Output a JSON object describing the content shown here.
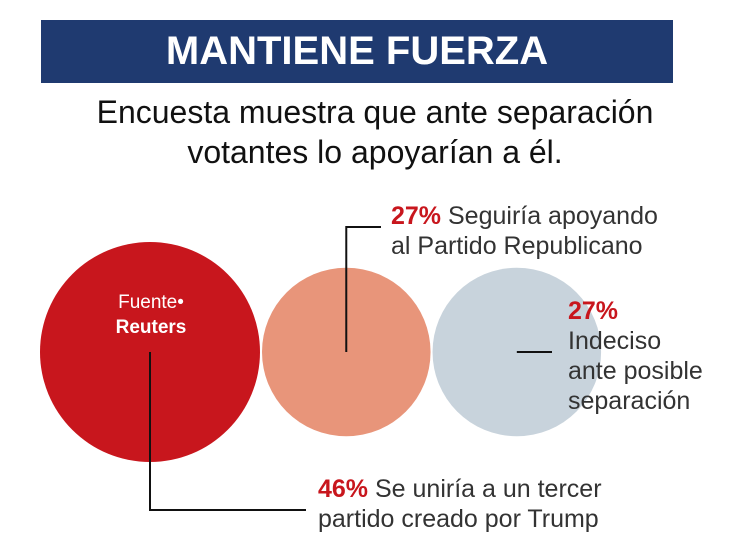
{
  "header": {
    "title": "MANTIENE FUERZA",
    "subtitle_line1": "Encuesta muestra que ante separación",
    "subtitle_line2": "votantes lo apoyarían a él."
  },
  "source": {
    "label": "Fuente",
    "value": "Reuters"
  },
  "colors": {
    "banner": "#1f3a70",
    "accent": "#c8161d",
    "republicano": "#e8957a",
    "indeciso": "#c8d3dc"
  },
  "chart_data": {
    "type": "bubble",
    "title": "MANTIENE FUERZA",
    "unit": "%",
    "series": [
      {
        "name": "Se uniría a un tercer partido creado por Trump",
        "value": 46,
        "label_pct": "46%",
        "line1": "Se uniría a un tercer",
        "line2": "partido creado por Trump"
      },
      {
        "name": "Seguiría apoyando al Partido Republicano",
        "value": 27,
        "label_pct": "27%",
        "line1": "Seguiría apoyando",
        "line2": "al Partido Republicano"
      },
      {
        "name": "Indeciso ante posible separación",
        "value": 27,
        "label_pct": "27%",
        "line1": "Indeciso",
        "line2": "ante posible",
        "line3": "separación"
      }
    ]
  }
}
